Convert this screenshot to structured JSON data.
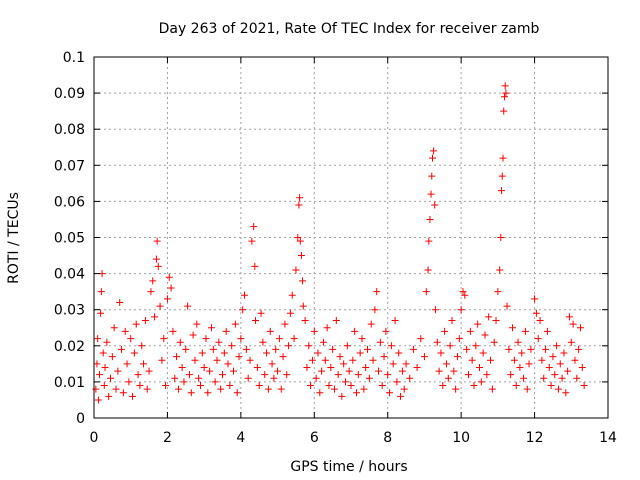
{
  "chart_data": {
    "type": "scatter",
    "title": "Day 263 of 2021, Rate Of TEC Index for receiver zamb",
    "xlabel": "GPS time / hours",
    "ylabel": "ROTI / TECUs",
    "xlim": [
      0,
      14
    ],
    "ylim": [
      0,
      0.1
    ],
    "xticks": [
      0,
      2,
      4,
      6,
      8,
      10,
      12,
      14
    ],
    "xtick_labels": [
      "0",
      "2",
      "4",
      "6",
      "8",
      "10",
      "12",
      "14"
    ],
    "yticks": [
      0,
      0.01,
      0.02,
      0.03,
      0.04,
      0.05,
      0.06,
      0.07,
      0.08,
      0.09,
      0.1
    ],
    "ytick_labels": [
      "0",
      "0.01",
      "0.02",
      "0.03",
      "0.04",
      "0.05",
      "0.06",
      "0.07",
      "0.08",
      "0.09",
      "0.1"
    ],
    "grid": true,
    "legend": "none",
    "marker": "+",
    "color": "#ff0000",
    "series": [
      {
        "points": [
          [
            0.05,
            0.008
          ],
          [
            0.08,
            0.015
          ],
          [
            0.1,
            0.022
          ],
          [
            0.12,
            0.005
          ],
          [
            0.15,
            0.012
          ],
          [
            0.18,
            0.029
          ],
          [
            0.2,
            0.035
          ],
          [
            0.22,
            0.04
          ],
          [
            0.25,
            0.018
          ],
          [
            0.28,
            0.009
          ],
          [
            0.3,
            0.014
          ],
          [
            0.35,
            0.021
          ],
          [
            0.4,
            0.006
          ],
          [
            0.45,
            0.011
          ],
          [
            0.5,
            0.017
          ],
          [
            0.55,
            0.025
          ],
          [
            0.6,
            0.008
          ],
          [
            0.65,
            0.013
          ],
          [
            0.7,
            0.032
          ],
          [
            0.75,
            0.019
          ],
          [
            0.8,
            0.007
          ],
          [
            0.85,
            0.024
          ],
          [
            0.9,
            0.015
          ],
          [
            0.95,
            0.01
          ],
          [
            1.0,
            0.022
          ],
          [
            1.05,
            0.006
          ],
          [
            1.1,
            0.018
          ],
          [
            1.15,
            0.026
          ],
          [
            1.2,
            0.012
          ],
          [
            1.25,
            0.009
          ],
          [
            1.3,
            0.02
          ],
          [
            1.35,
            0.015
          ],
          [
            1.4,
            0.027
          ],
          [
            1.45,
            0.008
          ],
          [
            1.5,
            0.013
          ],
          [
            1.55,
            0.035
          ],
          [
            1.6,
            0.038
          ],
          [
            1.65,
            0.028
          ],
          [
            1.7,
            0.044
          ],
          [
            1.72,
            0.049
          ],
          [
            1.75,
            0.042
          ],
          [
            1.8,
            0.031
          ],
          [
            1.85,
            0.016
          ],
          [
            1.9,
            0.022
          ],
          [
            1.95,
            0.009
          ],
          [
            2.0,
            0.033
          ],
          [
            2.05,
            0.039
          ],
          [
            2.1,
            0.036
          ],
          [
            2.15,
            0.024
          ],
          [
            2.2,
            0.011
          ],
          [
            2.25,
            0.017
          ],
          [
            2.3,
            0.008
          ],
          [
            2.35,
            0.021
          ],
          [
            2.4,
            0.014
          ],
          [
            2.45,
            0.01
          ],
          [
            2.5,
            0.019
          ],
          [
            2.55,
            0.031
          ],
          [
            2.6,
            0.012
          ],
          [
            2.65,
            0.007
          ],
          [
            2.7,
            0.023
          ],
          [
            2.75,
            0.016
          ],
          [
            2.8,
            0.026
          ],
          [
            2.85,
            0.011
          ],
          [
            2.9,
            0.009
          ],
          [
            2.95,
            0.018
          ],
          [
            3.0,
            0.014
          ],
          [
            3.05,
            0.022
          ],
          [
            3.1,
            0.007
          ],
          [
            3.15,
            0.013
          ],
          [
            3.2,
            0.025
          ],
          [
            3.25,
            0.019
          ],
          [
            3.3,
            0.01
          ],
          [
            3.35,
            0.016
          ],
          [
            3.4,
            0.021
          ],
          [
            3.45,
            0.008
          ],
          [
            3.5,
            0.012
          ],
          [
            3.55,
            0.018
          ],
          [
            3.6,
            0.024
          ],
          [
            3.65,
            0.015
          ],
          [
            3.7,
            0.009
          ],
          [
            3.75,
            0.02
          ],
          [
            3.8,
            0.013
          ],
          [
            3.85,
            0.026
          ],
          [
            3.9,
            0.007
          ],
          [
            3.95,
            0.017
          ],
          [
            4.0,
            0.022
          ],
          [
            4.05,
            0.03
          ],
          [
            4.1,
            0.034
          ],
          [
            4.15,
            0.019
          ],
          [
            4.2,
            0.011
          ],
          [
            4.25,
            0.016
          ],
          [
            4.3,
            0.049
          ],
          [
            4.35,
            0.053
          ],
          [
            4.38,
            0.042
          ],
          [
            4.4,
            0.027
          ],
          [
            4.45,
            0.014
          ],
          [
            4.5,
            0.009
          ],
          [
            4.55,
            0.029
          ],
          [
            4.6,
            0.021
          ],
          [
            4.65,
            0.012
          ],
          [
            4.7,
            0.018
          ],
          [
            4.75,
            0.008
          ],
          [
            4.8,
            0.024
          ],
          [
            4.85,
            0.015
          ],
          [
            4.9,
            0.011
          ],
          [
            4.95,
            0.019
          ],
          [
            5.0,
            0.013
          ],
          [
            5.05,
            0.022
          ],
          [
            5.1,
            0.008
          ],
          [
            5.15,
            0.017
          ],
          [
            5.2,
            0.026
          ],
          [
            5.25,
            0.012
          ],
          [
            5.3,
            0.02
          ],
          [
            5.35,
            0.029
          ],
          [
            5.4,
            0.034
          ],
          [
            5.45,
            0.022
          ],
          [
            5.5,
            0.041
          ],
          [
            5.55,
            0.05
          ],
          [
            5.58,
            0.059
          ],
          [
            5.6,
            0.061
          ],
          [
            5.62,
            0.049
          ],
          [
            5.65,
            0.045
          ],
          [
            5.68,
            0.038
          ],
          [
            5.7,
            0.031
          ],
          [
            5.75,
            0.027
          ],
          [
            5.8,
            0.014
          ],
          [
            5.85,
            0.02
          ],
          [
            5.9,
            0.009
          ],
          [
            5.95,
            0.016
          ],
          [
            6.0,
            0.024
          ],
          [
            6.05,
            0.011
          ],
          [
            6.1,
            0.018
          ],
          [
            6.15,
            0.007
          ],
          [
            6.2,
            0.013
          ],
          [
            6.25,
            0.021
          ],
          [
            6.3,
            0.016
          ],
          [
            6.35,
            0.025
          ],
          [
            6.4,
            0.009
          ],
          [
            6.45,
            0.014
          ],
          [
            6.5,
            0.019
          ],
          [
            6.55,
            0.008
          ],
          [
            6.6,
            0.027
          ],
          [
            6.65,
            0.012
          ],
          [
            6.7,
            0.017
          ],
          [
            6.75,
            0.006
          ],
          [
            6.8,
            0.015
          ],
          [
            6.85,
            0.01
          ],
          [
            6.9,
            0.02
          ],
          [
            6.95,
            0.013
          ],
          [
            7.0,
            0.009
          ],
          [
            7.05,
            0.016
          ],
          [
            7.1,
            0.024
          ],
          [
            7.15,
            0.007
          ],
          [
            7.2,
            0.012
          ],
          [
            7.25,
            0.018
          ],
          [
            7.3,
            0.022
          ],
          [
            7.35,
            0.008
          ],
          [
            7.4,
            0.014
          ],
          [
            7.45,
            0.019
          ],
          [
            7.5,
            0.011
          ],
          [
            7.55,
            0.026
          ],
          [
            7.6,
            0.016
          ],
          [
            7.65,
            0.03
          ],
          [
            7.7,
            0.035
          ],
          [
            7.75,
            0.013
          ],
          [
            7.8,
            0.021
          ],
          [
            7.85,
            0.009
          ],
          [
            7.9,
            0.017
          ],
          [
            7.95,
            0.024
          ],
          [
            8.0,
            0.012
          ],
          [
            8.05,
            0.007
          ],
          [
            8.1,
            0.02
          ],
          [
            8.15,
            0.015
          ],
          [
            8.2,
            0.027
          ],
          [
            8.25,
            0.01
          ],
          [
            8.3,
            0.018
          ],
          [
            8.35,
            0.006
          ],
          [
            8.4,
            0.013
          ],
          [
            8.45,
            0.008
          ],
          [
            8.5,
            0.015
          ],
          [
            8.6,
            0.011
          ],
          [
            8.7,
            0.019
          ],
          [
            8.8,
            0.014
          ],
          [
            8.9,
            0.022
          ],
          [
            9.0,
            0.017
          ],
          [
            9.05,
            0.035
          ],
          [
            9.1,
            0.041
          ],
          [
            9.12,
            0.049
          ],
          [
            9.15,
            0.055
          ],
          [
            9.18,
            0.062
          ],
          [
            9.2,
            0.067
          ],
          [
            9.22,
            0.072
          ],
          [
            9.25,
            0.074
          ],
          [
            9.28,
            0.059
          ],
          [
            9.3,
            0.03
          ],
          [
            9.35,
            0.021
          ],
          [
            9.4,
            0.013
          ],
          [
            9.45,
            0.018
          ],
          [
            9.5,
            0.009
          ],
          [
            9.55,
            0.024
          ],
          [
            9.6,
            0.015
          ],
          [
            9.65,
            0.011
          ],
          [
            9.7,
            0.02
          ],
          [
            9.75,
            0.027
          ],
          [
            9.8,
            0.013
          ],
          [
            9.85,
            0.008
          ],
          [
            9.9,
            0.017
          ],
          [
            9.95,
            0.022
          ],
          [
            10.0,
            0.03
          ],
          [
            10.05,
            0.035
          ],
          [
            10.1,
            0.034
          ],
          [
            10.15,
            0.019
          ],
          [
            10.2,
            0.012
          ],
          [
            10.25,
            0.024
          ],
          [
            10.3,
            0.016
          ],
          [
            10.35,
            0.009
          ],
          [
            10.4,
            0.02
          ],
          [
            10.45,
            0.026
          ],
          [
            10.5,
            0.014
          ],
          [
            10.55,
            0.01
          ],
          [
            10.6,
            0.018
          ],
          [
            10.65,
            0.023
          ],
          [
            10.7,
            0.012
          ],
          [
            10.75,
            0.028
          ],
          [
            10.8,
            0.016
          ],
          [
            10.85,
            0.008
          ],
          [
            10.9,
            0.021
          ],
          [
            10.95,
            0.027
          ],
          [
            11.0,
            0.035
          ],
          [
            11.05,
            0.041
          ],
          [
            11.08,
            0.05
          ],
          [
            11.1,
            0.063
          ],
          [
            11.12,
            0.067
          ],
          [
            11.14,
            0.072
          ],
          [
            11.16,
            0.085
          ],
          [
            11.18,
            0.089
          ],
          [
            11.2,
            0.092
          ],
          [
            11.22,
            0.09
          ],
          [
            11.25,
            0.031
          ],
          [
            11.3,
            0.019
          ],
          [
            11.35,
            0.012
          ],
          [
            11.4,
            0.025
          ],
          [
            11.45,
            0.016
          ],
          [
            11.5,
            0.009
          ],
          [
            11.55,
            0.021
          ],
          [
            11.6,
            0.014
          ],
          [
            11.65,
            0.018
          ],
          [
            11.7,
            0.011
          ],
          [
            11.75,
            0.024
          ],
          [
            11.8,
            0.008
          ],
          [
            11.85,
            0.015
          ],
          [
            11.9,
            0.019
          ],
          [
            12.0,
            0.033
          ],
          [
            12.05,
            0.029
          ],
          [
            12.1,
            0.022
          ],
          [
            12.15,
            0.027
          ],
          [
            12.2,
            0.016
          ],
          [
            12.25,
            0.011
          ],
          [
            12.3,
            0.019
          ],
          [
            12.35,
            0.024
          ],
          [
            12.4,
            0.014
          ],
          [
            12.45,
            0.009
          ],
          [
            12.5,
            0.017
          ],
          [
            12.55,
            0.012
          ],
          [
            12.6,
            0.02
          ],
          [
            12.65,
            0.008
          ],
          [
            12.7,
            0.015
          ],
          [
            12.75,
            0.011
          ],
          [
            12.8,
            0.018
          ],
          [
            12.85,
            0.007
          ],
          [
            12.9,
            0.013
          ],
          [
            12.95,
            0.028
          ],
          [
            13.0,
            0.021
          ],
          [
            13.05,
            0.026
          ],
          [
            13.1,
            0.016
          ],
          [
            13.15,
            0.011
          ],
          [
            13.2,
            0.019
          ],
          [
            13.25,
            0.025
          ],
          [
            13.3,
            0.014
          ],
          [
            13.35,
            0.009
          ]
        ]
      }
    ]
  }
}
